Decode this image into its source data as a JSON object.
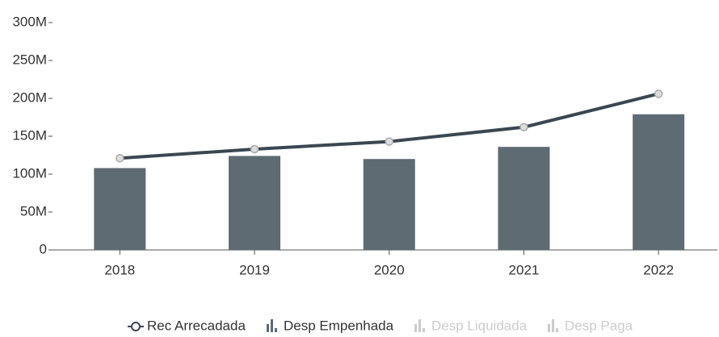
{
  "chart_data": {
    "type": "bar-line",
    "categories": [
      "2018",
      "2019",
      "2020",
      "2021",
      "2022"
    ],
    "series": [
      {
        "name": "Rec Arrecadada",
        "type": "line",
        "color": "#3b4750",
        "values": [
          121000000,
          133000000,
          143000000,
          162000000,
          206000000
        ]
      },
      {
        "name": "Desp Empenhada",
        "type": "bar",
        "color": "#5f6b73",
        "values": [
          108000000,
          124000000,
          120000000,
          136000000,
          179000000
        ]
      },
      {
        "name": "Desp Liquidada",
        "type": "bar",
        "color": "#cccccc",
        "visible": false
      },
      {
        "name": "Desp Paga",
        "type": "bar",
        "color": "#cccccc",
        "visible": false
      }
    ],
    "ylim": [
      0,
      300000000
    ],
    "yticks": [
      0,
      {
        "value": 50000000,
        "label": "50M"
      },
      {
        "value": 100000000,
        "label": "100M"
      },
      {
        "value": 150000000,
        "label": "150M"
      },
      {
        "value": 200000000,
        "label": "200M"
      },
      {
        "value": 250000000,
        "label": "250M"
      },
      {
        "value": 300000000,
        "label": "300M"
      }
    ]
  }
}
